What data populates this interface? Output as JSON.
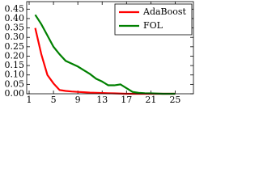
{
  "chart_data": {
    "type": "line",
    "x": [
      2,
      3,
      4,
      5,
      6,
      7,
      8,
      9,
      10,
      11,
      12,
      13,
      14,
      15,
      16,
      17,
      18,
      19,
      20,
      21,
      22,
      23,
      24,
      25
    ],
    "series": [
      {
        "name": "AdaBoost",
        "color": "#ff0000",
        "values": [
          0.35,
          0.21,
          0.1,
          0.055,
          0.02,
          0.015,
          0.012,
          0.01,
          0.008,
          0.006,
          0.005,
          0.004,
          0.003,
          0.002,
          0.001,
          0,
          0,
          0,
          0,
          0,
          0,
          0,
          0,
          0
        ]
      },
      {
        "name": "FOL",
        "color": "#008000",
        "values": [
          0.42,
          0.37,
          0.31,
          0.25,
          0.21,
          0.175,
          0.16,
          0.145,
          0.125,
          0.105,
          0.08,
          0.065,
          0.045,
          0.045,
          0.05,
          0.03,
          0.01,
          0.005,
          0.003,
          0.002,
          0.001,
          0,
          0,
          0
        ]
      }
    ],
    "xlim": [
      0.6,
      28
    ],
    "ylim": [
      0,
      0.49
    ],
    "xticks": [
      1,
      5,
      9,
      13,
      17,
      21,
      25
    ],
    "yticks": [
      {
        "value": 0,
        "label": "0.00"
      },
      0.05,
      {
        "value": 0.1,
        "label": "0.10"
      },
      0.15,
      {
        "value": 0.2,
        "label": "0.20"
      },
      0.25,
      {
        "value": 0.3,
        "label": "0.30"
      },
      0.35,
      {
        "value": 0.4,
        "label": "0.40"
      },
      0.45
    ],
    "legend": "upper right",
    "grid": false
  }
}
